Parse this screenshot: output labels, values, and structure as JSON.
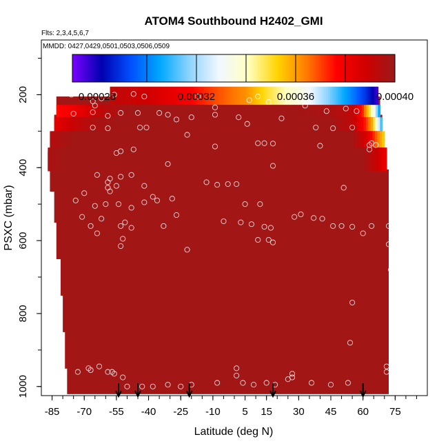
{
  "chart_data": {
    "type": "heatmap",
    "title": "ATOM4 Southbound H2402_GMI",
    "subtitle_flights": "Flts: 2,3,4,5,6,7",
    "subtitle_dates": "MMDD: 0427,0429,0501,0503,0506,0509",
    "xlabel": "Latitude (deg N)",
    "ylabel": "PSXC (mbar)",
    "xlim": [
      -90,
      90
    ],
    "ylim": [
      1025,
      50
    ],
    "x_ticks": [
      -85,
      -70,
      -55,
      -40,
      -25,
      -10,
      5,
      15,
      30,
      45,
      60,
      75
    ],
    "y_ticks": [
      200,
      400,
      600,
      800,
      1000
    ],
    "colorbar": {
      "range": [
        0.00027,
        0.0004
      ],
      "ticks": [
        0.00028,
        0.00032,
        0.00036,
        0.0004
      ],
      "tick_labels": [
        "0.00028",
        "0.00032",
        "0.00036",
        "0.00040"
      ],
      "color_stops": [
        "#7a00ff",
        "#0000b0",
        "#0050ff",
        "#00a8ff",
        "#8fd4ff",
        "#f2f8ff",
        "#ffffc0",
        "#ffd400",
        "#ff7a00",
        "#ff0000",
        "#d00000",
        "#9a1a1a"
      ]
    },
    "background_value": 0.000398,
    "field_bounds": [
      {
        "p": 180,
        "lat_min": -58,
        "lat_max": 67
      },
      {
        "p": 230,
        "lat_min": -83,
        "lat_max": 68
      },
      {
        "p": 280,
        "lat_min": -84,
        "lat_max": 69
      },
      {
        "p": 330,
        "lat_min": -86,
        "lat_max": 70
      },
      {
        "p": 380,
        "lat_min": -87,
        "lat_max": 71
      },
      {
        "p": 430,
        "lat_min": -86,
        "lat_max": 72
      },
      {
        "p": 500,
        "lat_min": -84,
        "lat_max": 72
      },
      {
        "p": 600,
        "lat_min": -83,
        "lat_max": 72
      },
      {
        "p": 700,
        "lat_min": -81,
        "lat_max": 72
      },
      {
        "p": 800,
        "lat_min": -80,
        "lat_max": 72
      },
      {
        "p": 900,
        "lat_min": -79,
        "lat_max": 72
      },
      {
        "p": 1000,
        "lat_min": -78,
        "lat_max": 72
      }
    ],
    "field_strips": [
      {
        "p_top": 178,
        "p_bot": 228,
        "lat": [
          -58,
          -40,
          -25,
          -10,
          5,
          15,
          25,
          35,
          45,
          55,
          62,
          67
        ],
        "values": [
          0.000392,
          0.000388,
          0.00038,
          0.00037,
          0.000362,
          0.00035,
          0.00034,
          0.00033,
          0.000315,
          0.0003,
          0.000288,
          0.000275
        ]
      },
      {
        "p_top": 228,
        "p_bot": 262,
        "lat": [
          -83,
          -72,
          -62,
          -50,
          -30,
          10,
          30,
          45,
          55,
          60,
          65,
          68
        ],
        "values": [
          0.000375,
          0.000382,
          0.000392,
          0.000398,
          0.000398,
          0.000398,
          0.000398,
          0.000396,
          0.000392,
          0.000372,
          0.000335,
          0.0003
        ]
      },
      {
        "p_top": 262,
        "p_bot": 300,
        "lat": [
          -84,
          -75,
          -65,
          -55,
          45,
          55,
          60,
          64,
          67,
          69
        ],
        "values": [
          0.000382,
          0.00039,
          0.000396,
          0.000398,
          0.000398,
          0.000392,
          0.000378,
          0.00036,
          0.00033,
          0.000305
        ]
      },
      {
        "p_top": 300,
        "p_bot": 345,
        "lat": [
          -86,
          -75,
          55,
          62,
          66,
          70
        ],
        "values": [
          0.000394,
          0.000398,
          0.000398,
          0.000385,
          0.000368,
          0.000352
        ]
      },
      {
        "p_top": 345,
        "p_bot": 410,
        "lat": [
          -87,
          -80,
          60,
          66,
          71
        ],
        "values": [
          0.000396,
          0.000398,
          0.000398,
          0.00039,
          0.00038
        ]
      }
    ],
    "observations": [
      [
        -76,
        200
      ],
      [
        -66,
        218
      ],
      [
        -65,
        230
      ],
      [
        -62,
        210
      ],
      [
        -56,
        200
      ],
      [
        -47,
        198
      ],
      [
        -42,
        205
      ],
      [
        -17,
        205
      ],
      [
        -9,
        235
      ],
      [
        7,
        215
      ],
      [
        11,
        205
      ],
      [
        16,
        220
      ],
      [
        33,
        230
      ],
      [
        43,
        245
      ],
      [
        52,
        238
      ],
      [
        57,
        245
      ],
      [
        -75,
        252
      ],
      [
        -66,
        248
      ],
      [
        -59,
        258
      ],
      [
        -53,
        250
      ],
      [
        -45,
        250
      ],
      [
        -35,
        250
      ],
      [
        -31,
        255
      ],
      [
        -27,
        268
      ],
      [
        -20,
        262
      ],
      [
        -9,
        255
      ],
      [
        2,
        262
      ],
      [
        6,
        280
      ],
      [
        22,
        265
      ],
      [
        38,
        290
      ],
      [
        46,
        292
      ],
      [
        55,
        290
      ],
      [
        63,
        338
      ],
      [
        64,
        333
      ],
      [
        66,
        338
      ],
      [
        -66,
        290
      ],
      [
        -59,
        292
      ],
      [
        -44,
        290
      ],
      [
        -41,
        290
      ],
      [
        -22,
        310
      ],
      [
        11,
        333
      ],
      [
        14,
        333
      ],
      [
        18,
        334
      ],
      [
        -55,
        360
      ],
      [
        -53,
        355
      ],
      [
        -47,
        350
      ],
      [
        -9,
        342
      ],
      [
        18,
        395
      ],
      [
        40,
        340
      ],
      [
        63,
        350
      ],
      [
        -31,
        390
      ],
      [
        -48,
        420
      ],
      [
        -53,
        425
      ],
      [
        -58,
        430
      ],
      [
        -59,
        440
      ],
      [
        -64,
        420
      ],
      [
        -59,
        455
      ],
      [
        -58,
        465
      ],
      [
        -55,
        450
      ],
      [
        -42,
        450
      ],
      [
        -36,
        490
      ],
      [
        -38,
        480
      ],
      [
        -42,
        495
      ],
      [
        -29,
        485
      ],
      [
        -70,
        470
      ],
      [
        -74,
        490
      ],
      [
        -13,
        440
      ],
      [
        -8,
        447
      ],
      [
        -3,
        445
      ],
      [
        1,
        445
      ],
      [
        5,
        500
      ],
      [
        12,
        500
      ],
      [
        -60,
        500
      ],
      [
        -54,
        500
      ],
      [
        -48,
        510
      ],
      [
        -65,
        505
      ],
      [
        -62,
        540
      ],
      [
        -51,
        550
      ],
      [
        -53,
        560
      ],
      [
        -48,
        565
      ],
      [
        -27,
        530
      ],
      [
        -33,
        560
      ],
      [
        -67,
        560
      ],
      [
        -64,
        580
      ],
      [
        -71,
        535
      ],
      [
        -52,
        595
      ],
      [
        -53,
        615
      ],
      [
        3,
        550
      ],
      [
        8,
        555
      ],
      [
        17,
        565
      ],
      [
        14,
        562
      ],
      [
        28,
        535
      ],
      [
        31,
        528
      ],
      [
        37,
        538
      ],
      [
        41,
        540
      ],
      [
        46,
        560
      ],
      [
        50,
        560
      ],
      [
        55,
        562
      ],
      [
        60,
        580
      ],
      [
        64,
        560
      ],
      [
        72,
        560
      ],
      [
        51,
        455
      ],
      [
        72,
        610
      ],
      [
        -5,
        547
      ],
      [
        11,
        598
      ],
      [
        16,
        598
      ],
      [
        18,
        605
      ],
      [
        -22,
        625
      ],
      [
        55,
        770
      ],
      [
        54,
        880
      ],
      [
        73,
        680
      ],
      [
        -73,
        960
      ],
      [
        -68,
        950
      ],
      [
        -67,
        955
      ],
      [
        -63,
        945
      ],
      [
        -59,
        960
      ],
      [
        -57,
        960
      ],
      [
        -56,
        965
      ],
      [
        -52,
        975
      ],
      [
        -50,
        1000
      ],
      [
        -43,
        1000
      ],
      [
        -38,
        1000
      ],
      [
        -31,
        995
      ],
      [
        -25,
        1000
      ],
      [
        -20,
        995
      ],
      [
        -8,
        990
      ],
      [
        1,
        950
      ],
      [
        1,
        970
      ],
      [
        4,
        990
      ],
      [
        9,
        995
      ],
      [
        15,
        990
      ],
      [
        19,
        995
      ],
      [
        25,
        980
      ],
      [
        27,
        965
      ],
      [
        27,
        975
      ],
      [
        36,
        990
      ],
      [
        45,
        995
      ],
      [
        53,
        990
      ],
      [
        71,
        945
      ],
      [
        71,
        960
      ]
    ],
    "arrows_lat": [
      -54,
      -45,
      -21,
      18,
      60
    ]
  }
}
